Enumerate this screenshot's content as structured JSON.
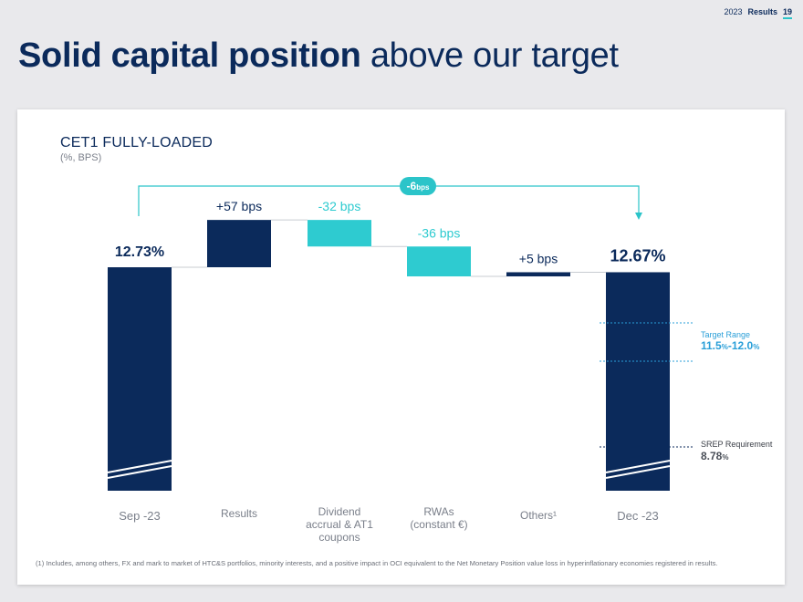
{
  "header": {
    "year": "2023",
    "label": "Results",
    "page": "19"
  },
  "title": {
    "bold": "Solid capital position",
    "light": "above our target"
  },
  "chart_title": "CET1 FULLY-LOADED",
  "chart_subtitle": "(%, BPS)",
  "colors": {
    "navy": "#0b2a5b",
    "teal": "#2ecbd0",
    "accent": "#2bc4c9"
  },
  "chart_data": {
    "type": "bar",
    "subtype": "waterfall",
    "title": "CET1 FULLY-LOADED",
    "subtitle": "(%, BPS)",
    "categories": [
      [
        "Sep -23"
      ],
      [
        "Results"
      ],
      [
        "Dividend",
        "accrual & AT1",
        "coupons"
      ],
      [
        "RWAs",
        "(constant €)"
      ],
      [
        "Others¹"
      ],
      [
        "Dec -23"
      ]
    ],
    "start": {
      "value": 12.73,
      "label": "12.73%"
    },
    "end": {
      "value": 12.67,
      "label": "12.67%"
    },
    "steps": [
      {
        "delta_bps": 57,
        "label": "+57 bps",
        "color": "#0b2a5b"
      },
      {
        "delta_bps": -32,
        "label": "-32 bps",
        "color": "#2ecbd0"
      },
      {
        "delta_bps": -36,
        "label": "-36 bps",
        "color": "#2ecbd0"
      },
      {
        "delta_bps": 5,
        "label": "+5 bps",
        "color": "#0b2a5b"
      }
    ],
    "net_change": {
      "value": "-6",
      "unit": "bps"
    },
    "references": [
      {
        "name": "Target Range",
        "low": 11.5,
        "high": 12.0,
        "low_label": "11.5",
        "high_label": "12.0",
        "unit": "%",
        "sep": "-",
        "color": "#2a9fd8"
      },
      {
        "name": "SREP Requirement",
        "value": 8.78,
        "value_label": "8.78",
        "unit": "%",
        "color": "#0b2a5b"
      }
    ],
    "axis_break": true
  },
  "footnote": "(1) Includes, among others, FX and mark to market of HTC&S portfolios, minority interests, and a positive impact in OCI equivalent to the Net Monetary Position value loss in hyperinflationary economies registered in results."
}
